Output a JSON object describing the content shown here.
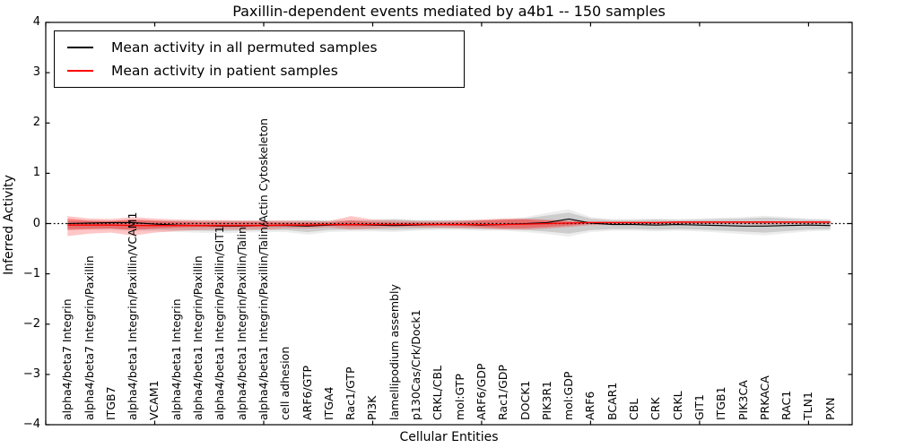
{
  "chart_data": {
    "type": "line",
    "title": "Paxillin-dependent events mediated by a4b1 -- 150 samples",
    "xlabel": "Cellular Entities",
    "ylabel": "Inferred Activity",
    "ylim": [
      -4,
      4
    ],
    "xlim": [
      0,
      37
    ],
    "grid": false,
    "legend_position": "upper left",
    "yticks": [
      4,
      3,
      2,
      1,
      0,
      -1,
      -2,
      -3,
      -4
    ],
    "yticklabels": [
      "4",
      "3",
      "2",
      "1",
      "0",
      "−1",
      "−2",
      "−3",
      "−4"
    ],
    "xticks": [
      0,
      5,
      10,
      15,
      20,
      25,
      30,
      35
    ],
    "categories": [
      "alpha4/beta7 Integrin",
      "alpha4/beta7 Integrin/Paxillin",
      "ITGB7",
      "alpha4/beta1 Integrin/Paxillin/VCAM1",
      "VCAM1",
      "alpha4/beta1 Integrin",
      "alpha4/beta1 Integrin/Paxillin",
      "alpha4/beta1 Integrin/Paxillin/GIT1",
      "alpha4/beta1 Integrin/Paxillin/Talin",
      "alpha4/beta1 Integrin/Paxillin/Talin/Actin Cytoskeleton",
      "cell adhesion",
      "ARF6/GTP",
      "ITGA4",
      "Rac1/GTP",
      "PI3K",
      "lamellipodium assembly",
      "p130Cas/Crk/Dock1",
      "CRKL/CBL",
      "mol:GTP",
      "ARF6/GDP",
      "Rac1/GDP",
      "DOCK1",
      "PIK3R1",
      "mol:GDP",
      "ARF6",
      "BCAR1",
      "CBL",
      "CRK",
      "CRKL",
      "GIT1",
      "ITGB1",
      "PIK3CA",
      "PRKACA",
      "RAC1",
      "TLN1",
      "PXN"
    ],
    "series": [
      {
        "name": "Mean activity in all permuted samples",
        "color": "#000000",
        "band_color": "#bfbfbf",
        "values": [
          0.0,
          0.01,
          0.02,
          0.02,
          -0.01,
          -0.03,
          -0.04,
          -0.05,
          -0.05,
          -0.04,
          -0.04,
          -0.05,
          -0.03,
          -0.02,
          -0.03,
          -0.04,
          -0.03,
          -0.02,
          -0.02,
          -0.03,
          -0.02,
          0.0,
          0.02,
          0.09,
          0.01,
          -0.02,
          -0.02,
          -0.03,
          -0.02,
          -0.03,
          -0.04,
          -0.05,
          -0.05,
          -0.04,
          -0.03,
          -0.04
        ],
        "band_upper": [
          0.05,
          0.05,
          0.05,
          0.06,
          0.05,
          0.05,
          0.05,
          0.05,
          0.05,
          0.05,
          0.05,
          0.06,
          0.05,
          0.06,
          0.06,
          0.08,
          0.06,
          0.06,
          0.06,
          0.06,
          0.07,
          0.1,
          0.16,
          0.22,
          0.1,
          0.07,
          0.07,
          0.08,
          0.07,
          0.08,
          0.09,
          0.1,
          0.12,
          0.1,
          0.08,
          0.07
        ],
        "band_lower": [
          -0.1,
          -0.1,
          -0.1,
          -0.12,
          -0.12,
          -0.13,
          -0.14,
          -0.15,
          -0.14,
          -0.13,
          -0.13,
          -0.17,
          -0.13,
          -0.12,
          -0.12,
          -0.13,
          -0.11,
          -0.1,
          -0.1,
          -0.11,
          -0.11,
          -0.13,
          -0.16,
          -0.2,
          -0.13,
          -0.11,
          -0.11,
          -0.12,
          -0.11,
          -0.12,
          -0.14,
          -0.16,
          -0.18,
          -0.15,
          -0.12,
          -0.11
        ]
      },
      {
        "name": "Mean activity in patient samples",
        "color": "#ff0000",
        "band_color": "#ff8080",
        "values": [
          -0.03,
          -0.03,
          -0.03,
          -0.04,
          -0.04,
          -0.04,
          -0.04,
          -0.04,
          -0.04,
          -0.04,
          -0.03,
          -0.03,
          -0.02,
          -0.02,
          -0.02,
          -0.02,
          -0.02,
          -0.02,
          -0.02,
          -0.02,
          -0.02,
          -0.01,
          0.0,
          0.01,
          0.02,
          0.02,
          0.02,
          0.02,
          0.03,
          0.03,
          0.03,
          0.03,
          0.03,
          0.03,
          0.03,
          0.03
        ],
        "band_upper": [
          0.15,
          0.1,
          0.09,
          0.13,
          0.1,
          0.08,
          0.07,
          0.07,
          0.06,
          0.06,
          0.06,
          0.05,
          0.05,
          0.15,
          0.08,
          0.06,
          0.05,
          0.05,
          0.06,
          0.08,
          0.1,
          0.1,
          0.08,
          0.06,
          0.04,
          0.04,
          0.04,
          0.04,
          0.04,
          0.04,
          0.04,
          0.04,
          0.05,
          0.04,
          0.04,
          0.04
        ],
        "band_lower": [
          -0.25,
          -0.2,
          -0.18,
          -0.24,
          -0.18,
          -0.15,
          -0.13,
          -0.12,
          -0.12,
          -0.12,
          -0.1,
          -0.1,
          -0.08,
          -0.12,
          -0.1,
          -0.08,
          -0.08,
          -0.08,
          -0.09,
          -0.1,
          -0.12,
          -0.12,
          -0.1,
          -0.07,
          -0.03,
          -0.02,
          -0.02,
          -0.02,
          -0.01,
          -0.01,
          -0.01,
          -0.01,
          -0.02,
          -0.01,
          -0.01,
          -0.01
        ],
        "band_inner_upper": [
          0.1,
          0.06,
          0.05,
          0.08,
          0.06,
          0.04,
          0.03,
          0.03,
          0.03,
          0.03,
          0.02,
          0.02,
          0.02,
          0.06,
          0.03,
          0.02,
          0.02,
          0.02,
          0.03,
          0.06,
          0.08,
          0.08,
          0.06,
          0.04,
          0.03,
          0.03,
          0.03,
          0.03,
          0.04,
          0.04,
          0.04,
          0.04,
          0.04,
          0.04,
          0.04,
          0.04
        ],
        "band_inner_lower": [
          -0.13,
          -0.11,
          -0.1,
          -0.13,
          -0.1,
          -0.08,
          -0.07,
          -0.07,
          -0.06,
          -0.06,
          -0.05,
          -0.05,
          -0.04,
          -0.06,
          -0.05,
          -0.04,
          -0.04,
          -0.04,
          -0.05,
          -0.07,
          -0.09,
          -0.09,
          -0.07,
          -0.04,
          0.0,
          0.0,
          0.0,
          0.0,
          0.01,
          0.01,
          0.01,
          0.01,
          0.01,
          0.01,
          0.01,
          0.01
        ]
      }
    ],
    "zero_line": {
      "value": 0,
      "style": "dotted",
      "color": "#000000"
    }
  }
}
